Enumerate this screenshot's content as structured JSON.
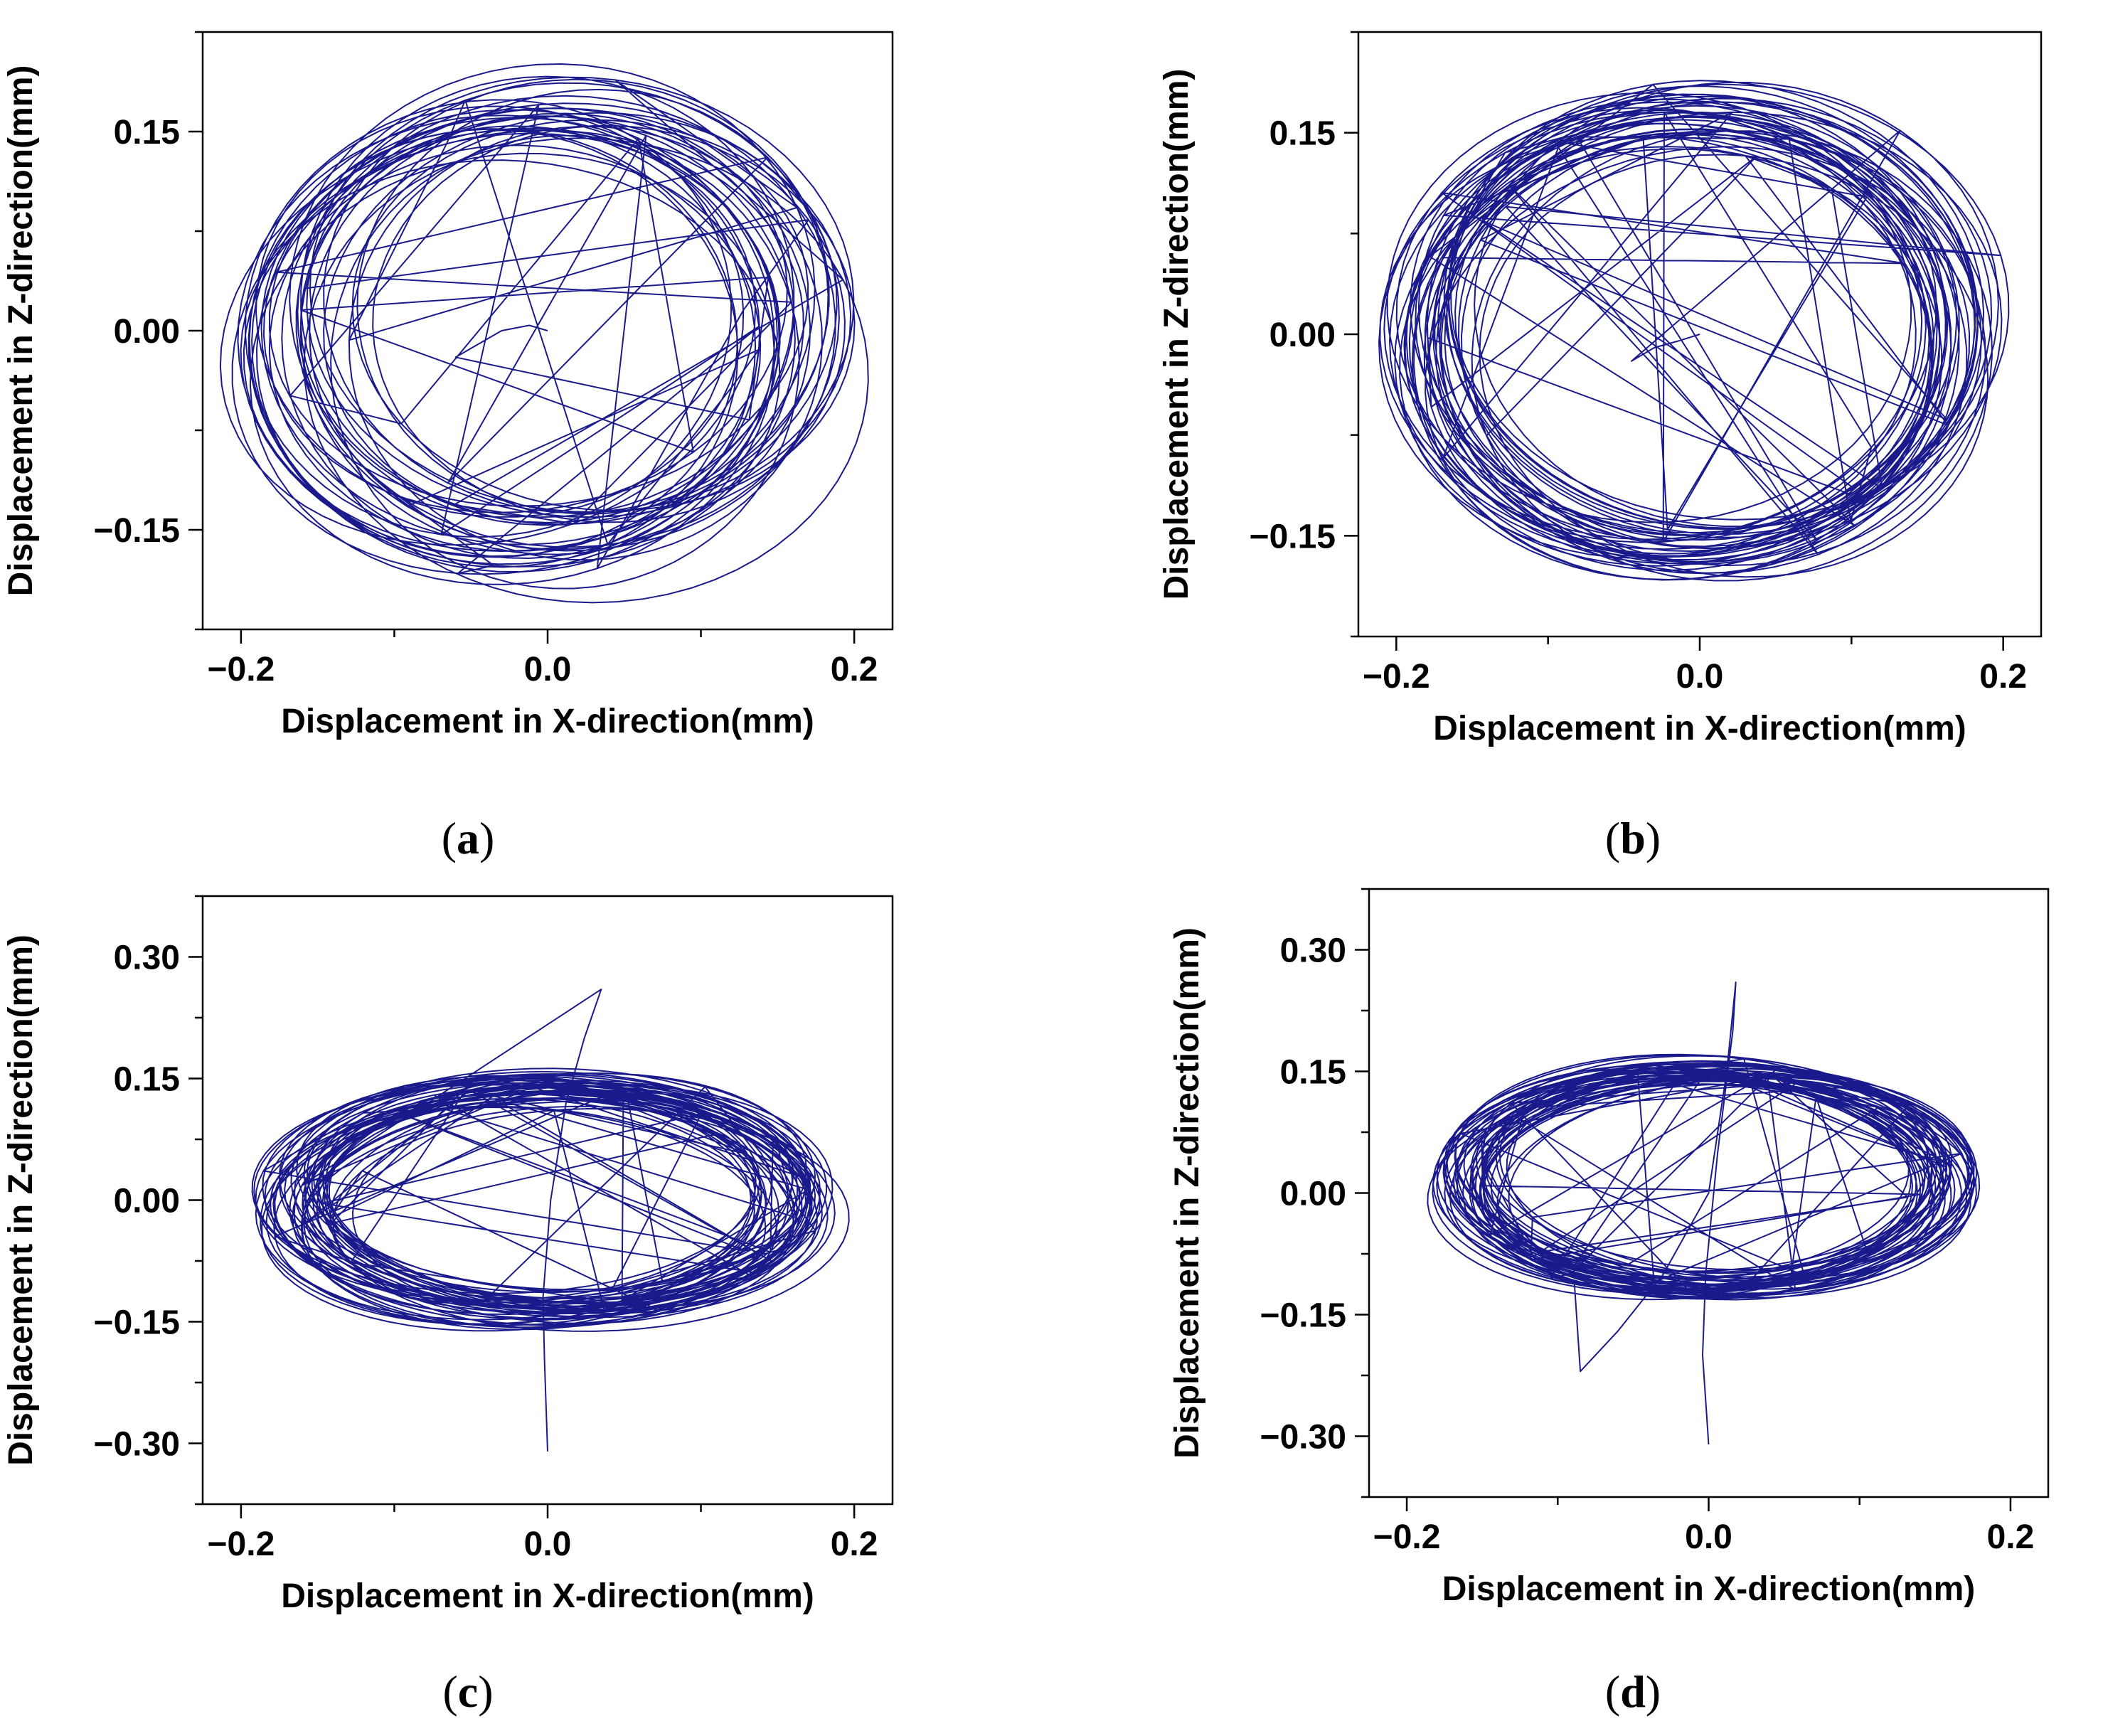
{
  "chart_data": [
    {
      "type": "line",
      "panel_label": "(a)",
      "label_letter": "a",
      "xlabel": "Displacement in X-direction(mm)",
      "ylabel": "Displacement in Z-direction(mm)",
      "xlim": [
        -0.225,
        0.225
      ],
      "ylim": [
        -0.225,
        0.225
      ],
      "xticks": [
        -0.2,
        0.0,
        0.2
      ],
      "xtick_labels": [
        "−0.2",
        "0.0",
        "0.2"
      ],
      "yticks": [
        -0.15,
        0.0,
        0.15
      ],
      "ytick_labels": [
        "−0.15",
        "0.00",
        "0.15"
      ],
      "grid": false,
      "series": [
        {
          "color": "#1a1a8c",
          "pattern": "rotating-loops",
          "x": [
            0.0,
            -0.012,
            -0.03,
            -0.048,
            -0.06
          ],
          "y": [
            0.0,
            0.004,
            0.0,
            -0.012,
            -0.02
          ],
          "loops": {
            "cx": 0.0,
            "cy": 0.0,
            "rx": 0.185,
            "ry": 0.175,
            "n": 34,
            "hole": 0.3,
            "spread_x": 0.08,
            "spread_y": 0.06
          }
        }
      ]
    },
    {
      "type": "line",
      "panel_label": "(b)",
      "label_letter": "b",
      "xlabel": "Displacement in X-direction(mm)",
      "ylabel": "Displacement in Z-direction(mm)",
      "xlim": [
        -0.225,
        0.225
      ],
      "ylim": [
        -0.225,
        0.225
      ],
      "xticks": [
        -0.2,
        0.0,
        0.2
      ],
      "xtick_labels": [
        "−0.2",
        "0.0",
        "0.2"
      ],
      "yticks": [
        -0.15,
        0.0,
        0.15
      ],
      "ytick_labels": [
        "−0.15",
        "0.00",
        "0.15"
      ],
      "grid": false,
      "series": [
        {
          "color": "#1a1a8c",
          "pattern": "rotating-loops",
          "x": [
            0.0,
            -0.014,
            -0.03,
            -0.045
          ],
          "y": [
            0.0,
            -0.005,
            -0.01,
            -0.02
          ],
          "loops": {
            "cx": -0.005,
            "cy": 0.0,
            "rx": 0.185,
            "ry": 0.17,
            "n": 40,
            "hole": 0.15,
            "spread_x": 0.06,
            "spread_y": 0.05
          }
        }
      ]
    },
    {
      "type": "line",
      "panel_label": "(c)",
      "label_letter": "c",
      "xlabel": "Displacement in X-direction(mm)",
      "ylabel": "Displacement in Z-direction(mm)",
      "xlim": [
        -0.225,
        0.225
      ],
      "ylim": [
        -0.375,
        0.375
      ],
      "xticks": [
        -0.2,
        0.0,
        0.2
      ],
      "xtick_labels": [
        "−0.2",
        "0.0",
        "0.2"
      ],
      "yticks": [
        -0.3,
        -0.15,
        0.0,
        0.15,
        0.3
      ],
      "ytick_labels": [
        "−0.30",
        "−0.15",
        "0.00",
        "0.15",
        "0.30"
      ],
      "grid": false,
      "series": [
        {
          "color": "#1a1a8c",
          "pattern": "rotating-loops",
          "x": [
            0.0,
            -0.002,
            -0.003,
            0.002,
            0.012,
            0.024,
            0.035
          ],
          "y": [
            -0.31,
            -0.2,
            -0.12,
            0.0,
            0.12,
            0.2,
            0.26
          ],
          "loops": {
            "cx": 0.0,
            "cy": 0.0,
            "rx": 0.17,
            "ry": 0.14,
            "n": 46,
            "hole": 0.1,
            "spread_x": 0.06,
            "spread_y": 0.05
          }
        }
      ]
    },
    {
      "type": "line",
      "panel_label": "(d)",
      "label_letter": "d",
      "xlabel": "Displacement in X-direction(mm)",
      "ylabel": "Displacement in Z-direction(mm)",
      "xlim": [
        -0.225,
        0.225
      ],
      "ylim": [
        -0.375,
        0.375
      ],
      "xticks": [
        -0.2,
        0.0,
        0.2
      ],
      "xtick_labels": [
        "−0.2",
        "0.0",
        "0.2"
      ],
      "yticks": [
        -0.3,
        -0.15,
        0.0,
        0.15,
        0.3
      ],
      "ytick_labels": [
        "−0.30",
        "−0.15",
        "0.00",
        "0.15",
        "0.30"
      ],
      "grid": false,
      "series": [
        {
          "color": "#1a1a8c",
          "pattern": "rotating-loops",
          "x": [
            0.0,
            -0.004,
            -0.002,
            0.006,
            0.016,
            0.018,
            0.012,
            0.0,
            -0.03,
            -0.06,
            -0.085
          ],
          "y": [
            -0.31,
            -0.2,
            -0.1,
            0.05,
            0.2,
            0.26,
            0.15,
            0.0,
            -0.1,
            -0.17,
            -0.22
          ],
          "loops": {
            "cx": 0.0,
            "cy": 0.02,
            "rx": 0.165,
            "ry": 0.135,
            "n": 44,
            "hole": 0.1,
            "spread_x": 0.05,
            "spread_y": 0.04
          }
        }
      ]
    }
  ]
}
